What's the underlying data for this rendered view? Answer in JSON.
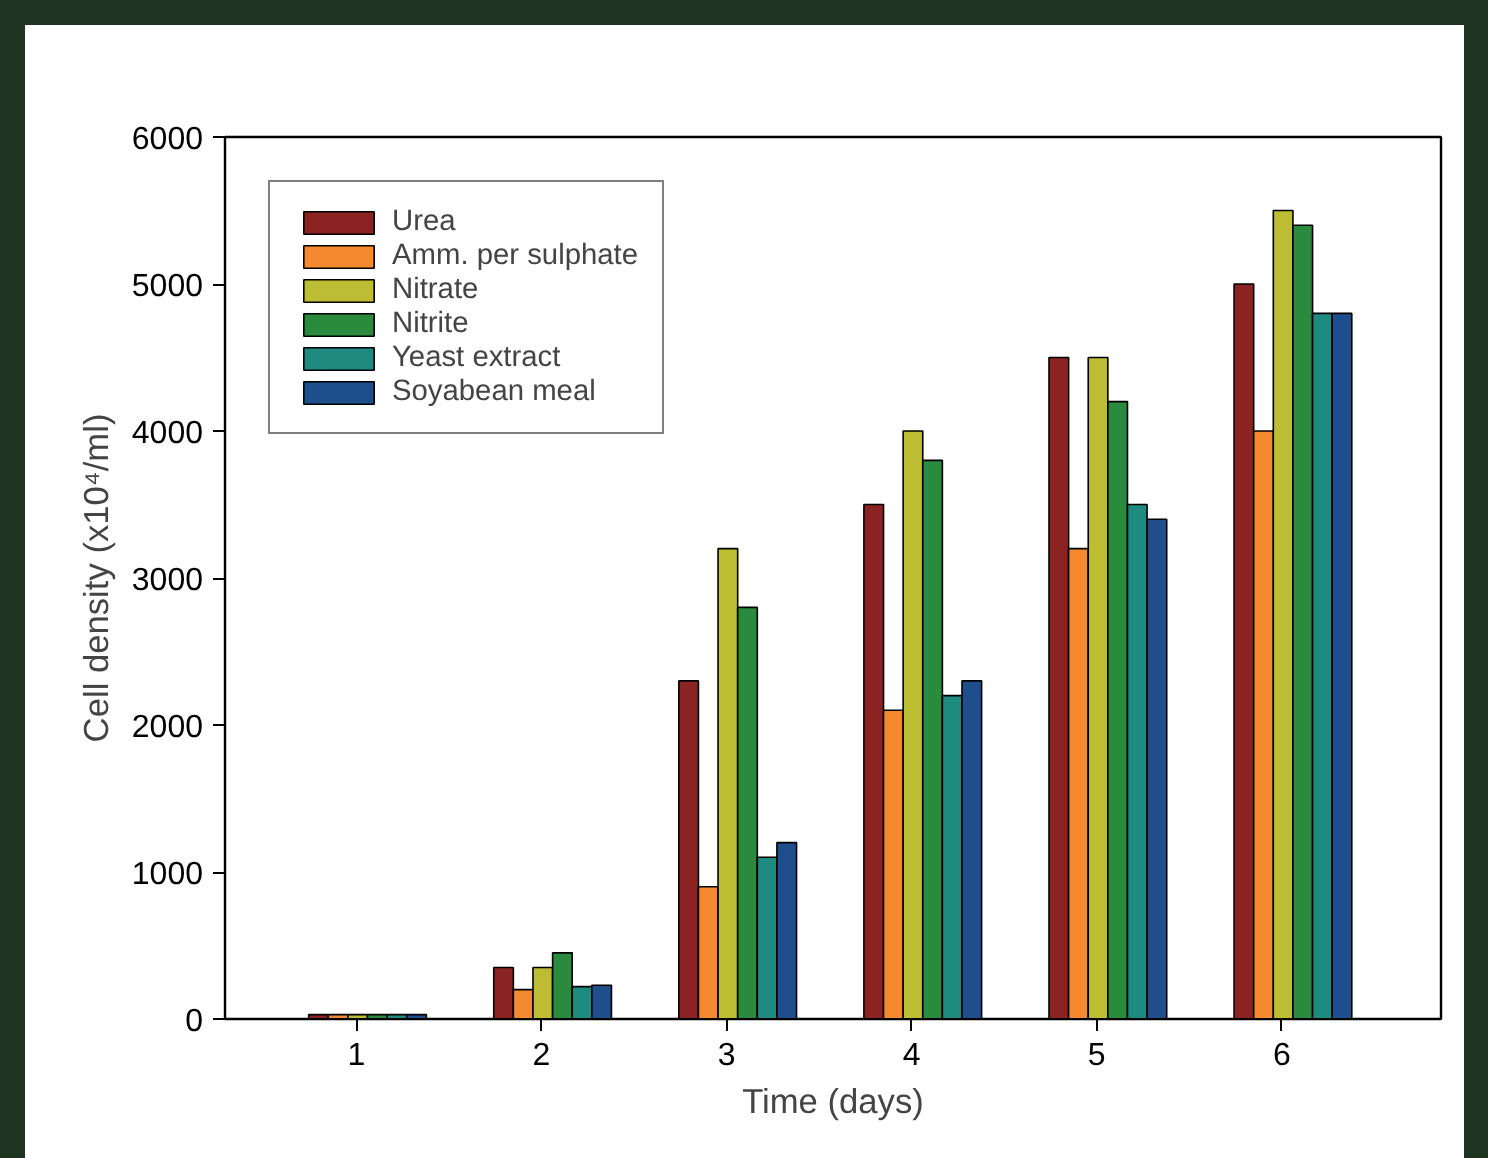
{
  "chart_data": {
    "type": "bar",
    "xlabel": "Time (days)",
    "ylabel": "Cell density (x10⁴/ml)",
    "categories": [
      "1",
      "2",
      "3",
      "4",
      "5",
      "6"
    ],
    "series": [
      {
        "name": "Urea",
        "color": "#8b2323",
        "values": [
          30,
          350,
          2300,
          3500,
          4500,
          5000
        ]
      },
      {
        "name": "Amm. per sulphate",
        "color": "#f5892f",
        "values": [
          30,
          200,
          900,
          2100,
          3200,
          4000
        ]
      },
      {
        "name": "Nitrate",
        "color": "#bdbd33",
        "values": [
          30,
          350,
          3200,
          4000,
          4500,
          5500
        ]
      },
      {
        "name": "Nitrite",
        "color": "#2a8a3e",
        "values": [
          30,
          450,
          2800,
          3800,
          4200,
          5400
        ]
      },
      {
        "name": "Yeast extract",
        "color": "#1f8a80",
        "values": [
          30,
          220,
          1100,
          2200,
          3500,
          4800
        ]
      },
      {
        "name": "Soyabean meal",
        "color": "#1f4e8c",
        "values": [
          30,
          230,
          1200,
          2300,
          3400,
          4800
        ]
      }
    ],
    "ylim": [
      0,
      6000
    ],
    "yticks": [
      0,
      1000,
      2000,
      3000,
      4000,
      5000,
      6000
    ],
    "grid": false,
    "legend": "top left"
  }
}
